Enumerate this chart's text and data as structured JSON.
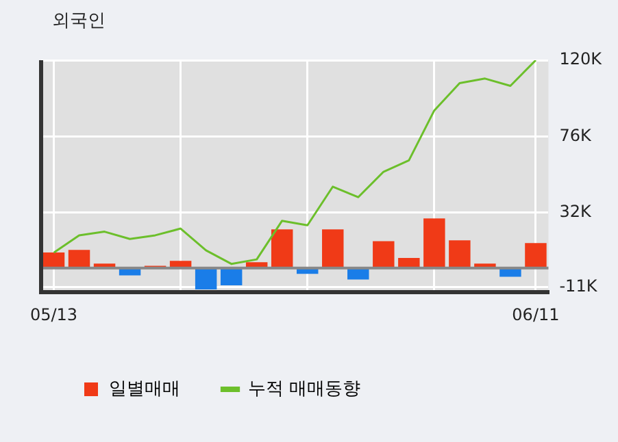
{
  "chart_data": {
    "type": "bar",
    "title": "외국인",
    "categories": [
      "05/13",
      null,
      null,
      null,
      null,
      null,
      null,
      null,
      null,
      null,
      null,
      null,
      null,
      null,
      null,
      null,
      null,
      null,
      null,
      "06/11"
    ],
    "series": [
      {
        "name": "일별매매",
        "colors": [
          "#f03a17",
          "#f03a17",
          "#f03a17",
          "#1a7de8",
          "#f03a17",
          "#f03a17",
          "#1a7de8",
          "#1a7de8",
          "#f03a17",
          "#f03a17",
          "#1a7de8",
          "#f03a17",
          "#1a7de8",
          "#f03a17",
          "#f03a17",
          "#f03a17",
          "#f03a17",
          "#f03a17",
          "#1a7de8",
          "#f03a17"
        ],
        "values": [
          9,
          10.5,
          2.6,
          -4.2,
          1.3,
          4.2,
          -12.3,
          -10,
          3.4,
          22.3,
          -3.4,
          22.3,
          -6.6,
          15.5,
          5.8,
          28.6,
          16,
          2.6,
          -5,
          14.4
        ]
      },
      {
        "name": "누적 매매동향",
        "type": "line",
        "color": "#6cbf2b",
        "values": [
          8.9,
          18.9,
          21,
          16.8,
          18.9,
          22.8,
          10.2,
          2.4,
          5,
          27.3,
          24.7,
          47,
          40.9,
          55.6,
          62.2,
          91,
          106.8,
          109.4,
          105.2,
          120
        ]
      }
    ],
    "ylim": [
      -14,
      120
    ],
    "yticks": [
      {
        "value": 120,
        "label": "120K"
      },
      {
        "value": 76,
        "label": "76K"
      },
      {
        "value": 32,
        "label": "32K"
      },
      {
        "value": -11,
        "label": "-11K"
      }
    ],
    "grid": true,
    "legend": "bottom",
    "marker": "none"
  }
}
